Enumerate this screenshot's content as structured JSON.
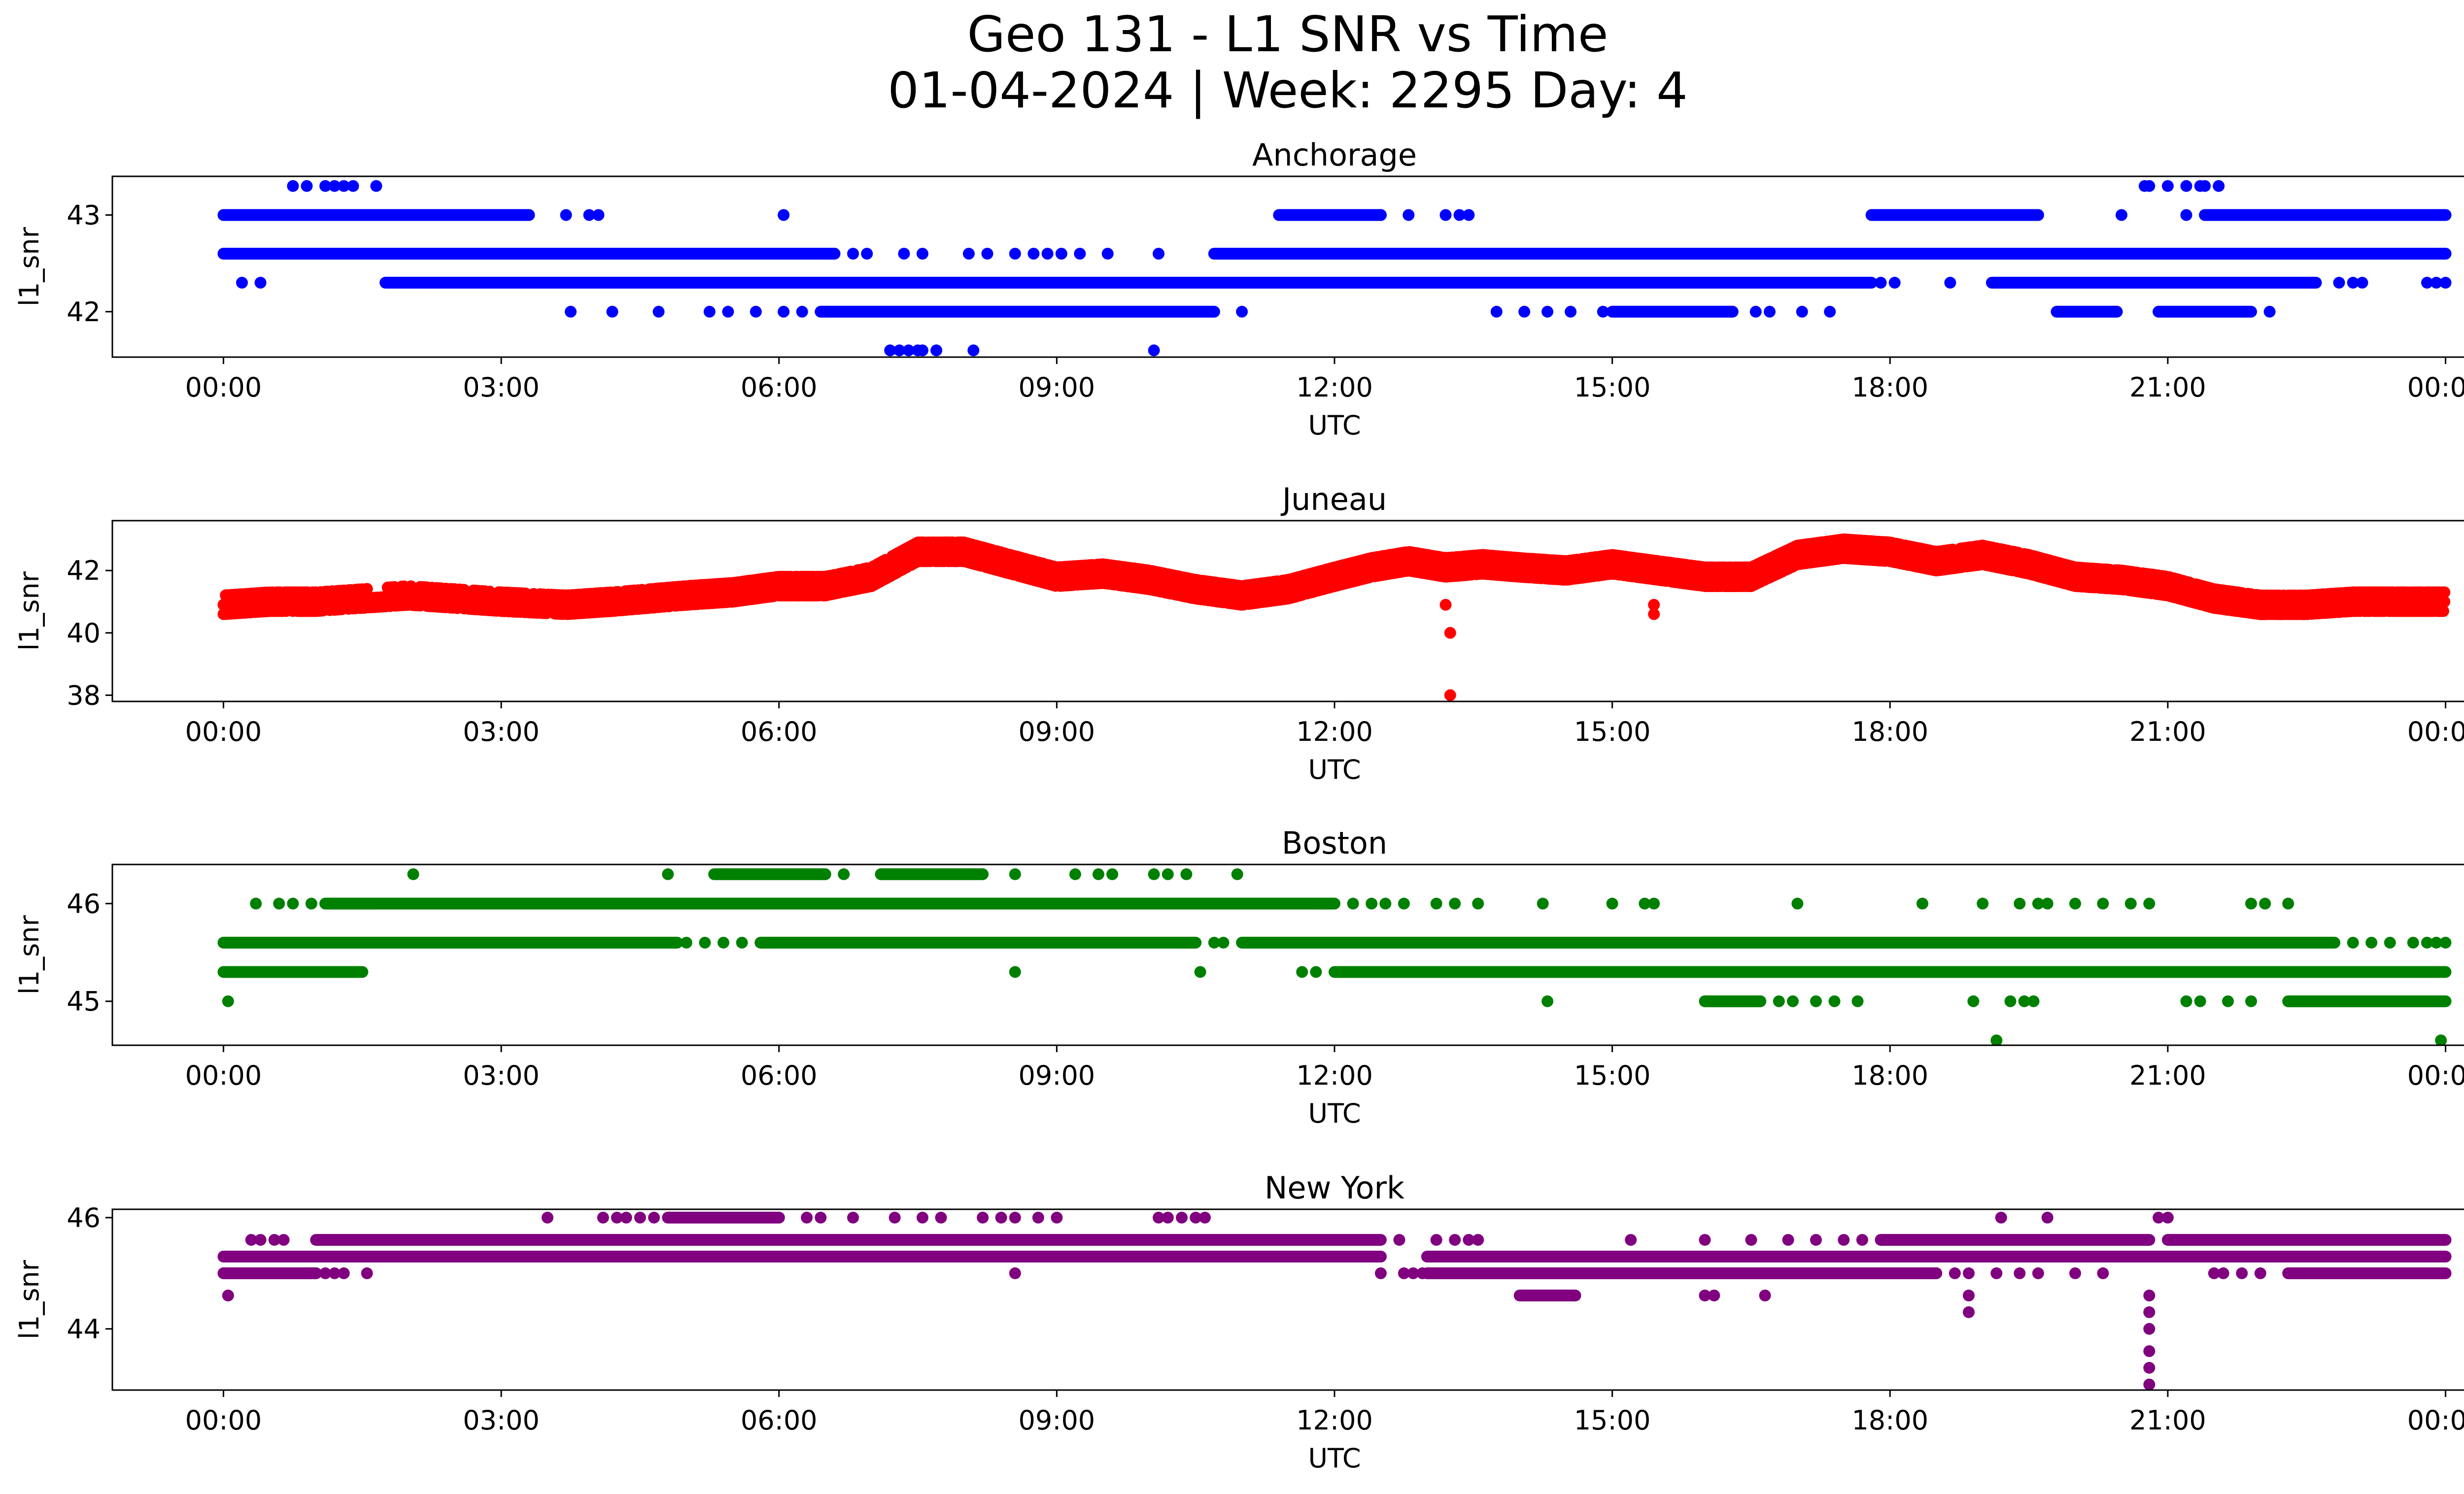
{
  "figure": {
    "title_line1": "Geo 131 - L1 SNR vs Time",
    "title_line2": "01-04-2024 | Week: 2295 Day: 4"
  },
  "chart_data": [
    {
      "type": "scatter",
      "title": "Anchorage",
      "xlabel": "UTC",
      "ylabel": "l1_snr",
      "color": "#0000ff",
      "xlim_hours": [
        -1.2,
        25.2
      ],
      "xticks": [
        "00:00",
        "03:00",
        "06:00",
        "09:00",
        "12:00",
        "15:00",
        "18:00",
        "21:00",
        "00:00"
      ],
      "ylim": [
        41.53,
        43.4
      ],
      "yticks": [
        42,
        43
      ],
      "levels": [
        {
          "y": 43.3,
          "ranges": [],
          "points": [
            0.75,
            0.9,
            1.1,
            1.2,
            1.3,
            1.4,
            1.65,
            20.75,
            20.8,
            21.0,
            21.2,
            21.35,
            21.4,
            21.55
          ]
        },
        {
          "y": 43.0,
          "ranges": [
            [
              0.0,
              3.3
            ],
            [
              11.4,
              12.5
            ],
            [
              17.8,
              19.6
            ],
            [
              21.4,
              24.0
            ]
          ],
          "points": [
            3.7,
            3.95,
            4.05,
            6.05,
            12.5,
            12.8,
            13.2,
            13.35,
            13.45,
            20.5,
            21.2,
            22.3
          ]
        },
        {
          "y": 42.6,
          "ranges": [
            [
              0.0,
              6.6
            ],
            [
              10.7,
              24.0
            ]
          ],
          "points": [
            6.8,
            6.95,
            7.35,
            7.55,
            8.05,
            8.25,
            8.55,
            8.75,
            8.9,
            9.05,
            9.25,
            9.55,
            10.1
          ]
        },
        {
          "y": 42.3,
          "ranges": [
            [
              1.75,
              17.8
            ],
            [
              19.1,
              22.6
            ]
          ],
          "points": [
            0.2,
            0.4,
            2.0,
            2.25,
            17.9,
            18.05,
            18.65,
            22.85,
            23.0,
            23.1,
            23.8,
            23.9,
            24.0
          ]
        },
        {
          "y": 42.0,
          "ranges": [
            [
              6.45,
              10.7
            ],
            [
              15.0,
              16.3
            ],
            [
              19.8,
              20.45
            ],
            [
              20.9,
              21.9
            ]
          ],
          "points": [
            3.75,
            4.2,
            4.7,
            5.25,
            5.45,
            5.75,
            6.05,
            6.25,
            11.0,
            13.75,
            14.05,
            14.3,
            14.55,
            14.9,
            16.55,
            16.7,
            17.05,
            17.35,
            22.1
          ]
        },
        {
          "y": 41.6,
          "ranges": [],
          "points": [
            7.2,
            7.3,
            7.4,
            7.5,
            7.55,
            7.7,
            8.1,
            10.05
          ]
        }
      ]
    },
    {
      "type": "scatter",
      "title": "Juneau",
      "xlabel": "UTC",
      "ylabel": "l1_snr",
      "color": "#ff0000",
      "xlim_hours": [
        -1.2,
        25.2
      ],
      "xticks": [
        "00:00",
        "03:00",
        "06:00",
        "09:00",
        "12:00",
        "15:00",
        "18:00",
        "21:00",
        "00:00"
      ],
      "ylim": [
        37.8,
        43.6
      ],
      "yticks": [
        38,
        40,
        42
      ],
      "band": [
        [
          0.0,
          40.9
        ],
        [
          0.5,
          41.0
        ],
        [
          1.0,
          41.0
        ],
        [
          2.0,
          41.2
        ],
        [
          3.0,
          41.0
        ],
        [
          3.7,
          40.9
        ],
        [
          4.2,
          41.0
        ],
        [
          5.0,
          41.2
        ],
        [
          5.5,
          41.3
        ],
        [
          6.0,
          41.5
        ],
        [
          6.5,
          41.5
        ],
        [
          7.0,
          41.8
        ],
        [
          7.5,
          42.6
        ],
        [
          8.0,
          42.6
        ],
        [
          8.5,
          42.2
        ],
        [
          9.0,
          41.8
        ],
        [
          9.5,
          41.9
        ],
        [
          10.0,
          41.7
        ],
        [
          10.5,
          41.4
        ],
        [
          11.0,
          41.2
        ],
        [
          11.5,
          41.4
        ],
        [
          12.0,
          41.8
        ],
        [
          12.4,
          42.1
        ],
        [
          12.8,
          42.3
        ],
        [
          13.2,
          42.1
        ],
        [
          13.6,
          42.2
        ],
        [
          14.0,
          42.1
        ],
        [
          14.5,
          42.0
        ],
        [
          15.0,
          42.2
        ],
        [
          15.5,
          42.0
        ],
        [
          16.0,
          41.8
        ],
        [
          16.5,
          41.8
        ],
        [
          17.0,
          42.5
        ],
        [
          17.5,
          42.7
        ],
        [
          18.0,
          42.6
        ],
        [
          18.5,
          42.3
        ],
        [
          19.0,
          42.5
        ],
        [
          19.5,
          42.2
        ],
        [
          20.0,
          41.8
        ],
        [
          20.5,
          41.7
        ],
        [
          21.0,
          41.5
        ],
        [
          21.5,
          41.1
        ],
        [
          22.0,
          40.9
        ],
        [
          22.5,
          40.9
        ],
        [
          23.0,
          41.0
        ],
        [
          23.5,
          41.0
        ],
        [
          24.0,
          41.0
        ]
      ],
      "outliers": [
        [
          13.25,
          40.0
        ],
        [
          13.25,
          38.0
        ],
        [
          13.2,
          40.9
        ],
        [
          15.45,
          40.6
        ],
        [
          15.45,
          40.9
        ]
      ]
    },
    {
      "type": "scatter",
      "title": "Boston",
      "xlabel": "UTC",
      "ylabel": "l1_snr",
      "color": "#008000",
      "xlim_hours": [
        -1.2,
        25.2
      ],
      "xticks": [
        "00:00",
        "03:00",
        "06:00",
        "09:00",
        "12:00",
        "15:00",
        "18:00",
        "21:00",
        "00:00"
      ],
      "ylim": [
        44.55,
        46.4
      ],
      "yticks": [
        45,
        46
      ],
      "levels": [
        {
          "y": 46.3,
          "ranges": [
            [
              5.3,
              6.5
            ],
            [
              7.1,
              8.2
            ]
          ],
          "points": [
            2.05,
            4.8,
            6.7,
            8.55,
            9.2,
            9.45,
            9.6,
            10.05,
            10.2,
            10.4,
            10.95
          ]
        },
        {
          "y": 46.0,
          "ranges": [
            [
              1.1,
              12.0
            ]
          ],
          "points": [
            0.35,
            0.6,
            0.75,
            0.95,
            12.2,
            12.4,
            12.55,
            12.75,
            13.1,
            13.3,
            13.55,
            14.25,
            15.0,
            15.35,
            15.45,
            17.0,
            18.35,
            19.0,
            19.4,
            19.6,
            19.7,
            20.0,
            20.3,
            20.6,
            20.8,
            21.9,
            22.05,
            22.3
          ]
        },
        {
          "y": 45.6,
          "ranges": [
            [
              0.0,
              4.9
            ],
            [
              5.8,
              10.5
            ],
            [
              11.0,
              22.8
            ]
          ],
          "points": [
            5.0,
            5.2,
            5.4,
            5.6,
            10.7,
            10.8,
            23.0,
            23.2,
            23.4,
            23.65,
            23.8,
            23.9,
            24.0
          ]
        },
        {
          "y": 45.3,
          "ranges": [
            [
              0.0,
              1.5
            ],
            [
              12.0,
              24.0
            ]
          ],
          "points": [
            8.55,
            10.55,
            11.65,
            11.8
          ]
        },
        {
          "y": 45.0,
          "ranges": [
            [
              16.0,
              16.6
            ],
            [
              22.3,
              24.0
            ]
          ],
          "points": [
            0.05,
            14.3,
            16.8,
            16.95,
            17.2,
            17.4,
            17.65,
            18.9,
            19.3,
            19.45,
            19.55,
            21.2,
            21.35,
            21.65,
            21.9
          ]
        },
        {
          "y": 44.6,
          "ranges": [],
          "points": [
            19.15,
            23.95
          ]
        }
      ]
    },
    {
      "type": "scatter",
      "title": "New York",
      "xlabel": "UTC",
      "ylabel": "l1_snr",
      "color": "#800080",
      "xlim_hours": [
        -1.2,
        25.2
      ],
      "xticks": [
        "00:00",
        "03:00",
        "06:00",
        "09:00",
        "12:00",
        "15:00",
        "18:00",
        "21:00",
        "00:00"
      ],
      "ylim": [
        42.9,
        46.15
      ],
      "yticks": [
        44,
        46
      ],
      "levels": [
        {
          "y": 46.0,
          "ranges": [
            [
              4.8,
              6.0
            ]
          ],
          "points": [
            3.5,
            4.1,
            4.25,
            4.35,
            4.5,
            4.65,
            6.3,
            6.45,
            6.8,
            7.25,
            7.55,
            7.75,
            8.2,
            8.4,
            8.55,
            8.8,
            9.0,
            10.1,
            10.2,
            10.35,
            10.5,
            10.6,
            19.2,
            19.7,
            20.9,
            21.0
          ]
        },
        {
          "y": 45.6,
          "ranges": [
            [
              1.0,
              12.5
            ],
            [
              17.9,
              20.8
            ],
            [
              21.0,
              24.0
            ]
          ],
          "points": [
            0.3,
            0.4,
            0.55,
            0.65,
            12.7,
            13.1,
            13.3,
            13.45,
            13.55,
            15.2,
            16.0,
            16.5,
            16.9,
            17.2,
            17.5,
            17.7
          ]
        },
        {
          "y": 45.3,
          "ranges": [
            [
              0.0,
              12.5
            ],
            [
              13.0,
              24.0
            ]
          ],
          "points": []
        },
        {
          "y": 45.0,
          "ranges": [
            [
              0.0,
              1.0
            ],
            [
              13.0,
              18.5
            ],
            [
              22.3,
              24.0
            ]
          ],
          "points": [
            1.1,
            1.2,
            1.3,
            1.55,
            8.55,
            12.5,
            12.75,
            12.85,
            12.95,
            18.7,
            18.85,
            19.15,
            19.4,
            19.6,
            20.0,
            20.3,
            21.5,
            21.6,
            21.8,
            22.0
          ]
        },
        {
          "y": 44.6,
          "ranges": [
            [
              14.0,
              14.6
            ]
          ],
          "points": [
            16.0,
            16.1,
            16.65
          ]
        },
        {
          "y": 44.6,
          "ranges": [],
          "points": [
            18.85
          ]
        },
        {
          "y": 44.3,
          "ranges": [],
          "points": [
            18.85
          ]
        }
      ],
      "columns": [
        {
          "x": 20.8,
          "values": [
            44.6,
            44.3,
            44.0,
            43.6,
            43.3,
            43.0
          ]
        }
      ],
      "extra_points": [
        [
          0.05,
          44.6
        ]
      ]
    }
  ]
}
